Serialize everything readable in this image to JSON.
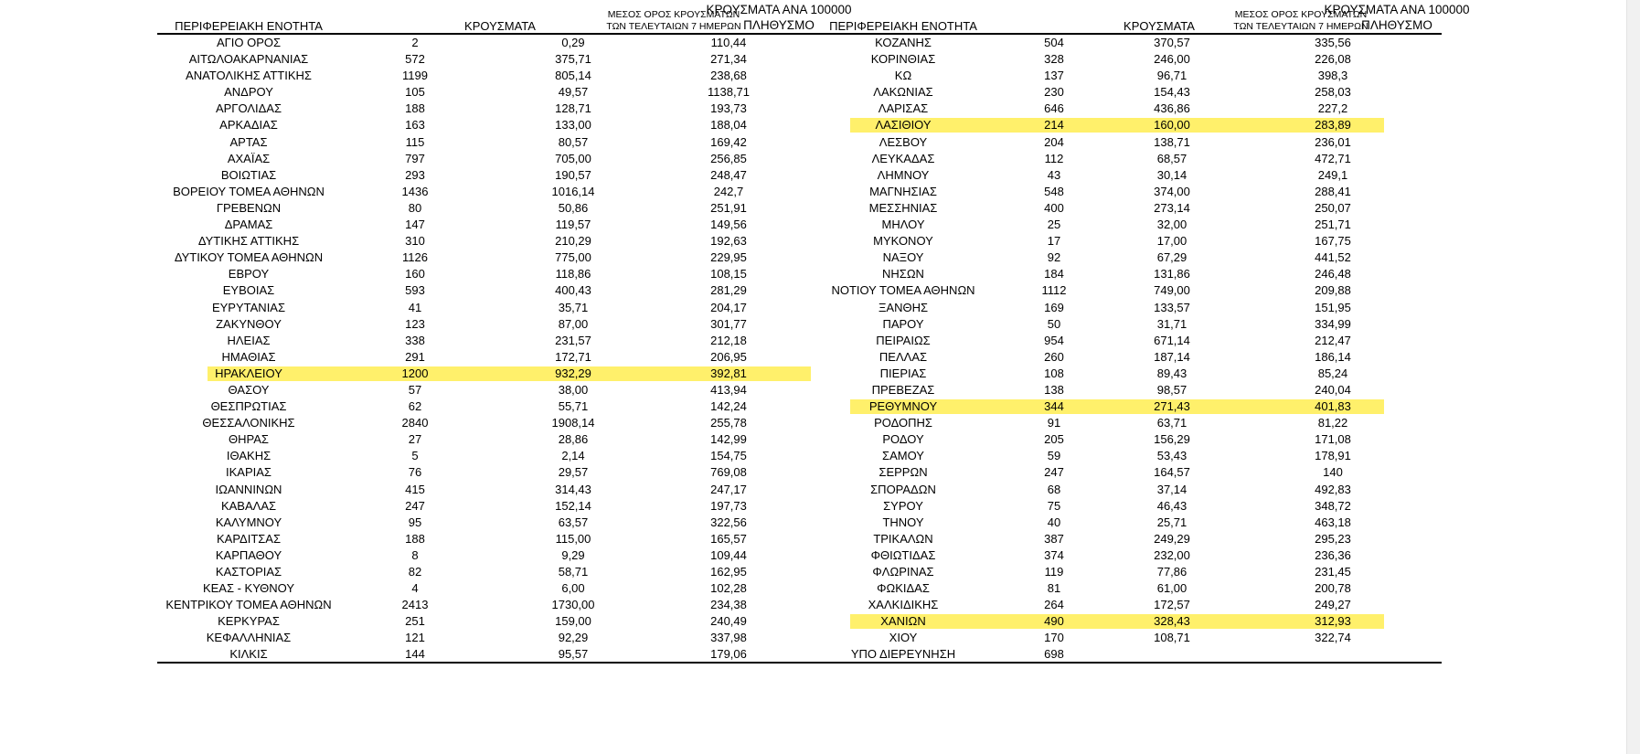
{
  "headers": {
    "region": "ΠΕΡΙΦΕΡΕΙΑΚΗ ΕΝΟΤΗΤΑ",
    "cases": "ΚΡΟΥΣΜΑΤΑ",
    "avg_line1": "ΜΕΣΟΣ ΟΡΟΣ ΚΡΟΥΣΜΑΤΩΝ",
    "avg_line2": "ΤΩΝ ΤΕΛΕΥΤΑΙΩΝ 7 ΗΜΕΡΩΝ",
    "per100k_line1": "ΚΡΟΥΣΜΑΤΑ ΑΝΑ 100000",
    "per100k_line2": "ΠΛΗΘΥΣΜΟ"
  },
  "highlight_color": "#fff06b",
  "left_rows": [
    {
      "region": "ΑΓΙΟ ΟΡΟΣ",
      "cases": "2",
      "avg": "0,29",
      "per100k": "110,44"
    },
    {
      "region": "ΑΙΤΩΛΟΑΚΑΡΝΑΝΙΑΣ",
      "cases": "572",
      "avg": "375,71",
      "per100k": "271,34"
    },
    {
      "region": "ΑΝΑΤΟΛΙΚΗΣ ΑΤΤΙΚΗΣ",
      "cases": "1199",
      "avg": "805,14",
      "per100k": "238,68"
    },
    {
      "region": "ΑΝΔΡΟΥ",
      "cases": "105",
      "avg": "49,57",
      "per100k": "1138,71"
    },
    {
      "region": "ΑΡΓΟΛΙΔΑΣ",
      "cases": "188",
      "avg": "128,71",
      "per100k": "193,73"
    },
    {
      "region": "ΑΡΚΑΔΙΑΣ",
      "cases": "163",
      "avg": "133,00",
      "per100k": "188,04"
    },
    {
      "region": "ΑΡΤΑΣ",
      "cases": "115",
      "avg": "80,57",
      "per100k": "169,42"
    },
    {
      "region": "ΑΧΑΪΑΣ",
      "cases": "797",
      "avg": "705,00",
      "per100k": "256,85"
    },
    {
      "region": "ΒΟΙΩΤΙΑΣ",
      "cases": "293",
      "avg": "190,57",
      "per100k": "248,47"
    },
    {
      "region": "ΒΟΡΕΙΟΥ ΤΟΜΕΑ ΑΘΗΝΩΝ",
      "cases": "1436",
      "avg": "1016,14",
      "per100k": "242,7"
    },
    {
      "region": "ΓΡΕΒΕΝΩΝ",
      "cases": "80",
      "avg": "50,86",
      "per100k": "251,91"
    },
    {
      "region": "ΔΡΑΜΑΣ",
      "cases": "147",
      "avg": "119,57",
      "per100k": "149,56"
    },
    {
      "region": "ΔΥΤΙΚΗΣ ΑΤΤΙΚΗΣ",
      "cases": "310",
      "avg": "210,29",
      "per100k": "192,63"
    },
    {
      "region": "ΔΥΤΙΚΟΥ ΤΟΜΕΑ ΑΘΗΝΩΝ",
      "cases": "1126",
      "avg": "775,00",
      "per100k": "229,95"
    },
    {
      "region": "ΕΒΡΟΥ",
      "cases": "160",
      "avg": "118,86",
      "per100k": "108,15"
    },
    {
      "region": "ΕΥΒΟΙΑΣ",
      "cases": "593",
      "avg": "400,43",
      "per100k": "281,29"
    },
    {
      "region": "ΕΥΡΥΤΑΝΙΑΣ",
      "cases": "41",
      "avg": "35,71",
      "per100k": "204,17"
    },
    {
      "region": "ΖΑΚΥΝΘΟΥ",
      "cases": "123",
      "avg": "87,00",
      "per100k": "301,77"
    },
    {
      "region": "ΗΛΕΙΑΣ",
      "cases": "338",
      "avg": "231,57",
      "per100k": "212,18"
    },
    {
      "region": "ΗΜΑΘΙΑΣ",
      "cases": "291",
      "avg": "172,71",
      "per100k": "206,95"
    },
    {
      "region": "ΗΡΑΚΛΕΙΟΥ",
      "cases": "1200",
      "avg": "932,29",
      "per100k": "392,81",
      "highlight": true
    },
    {
      "region": "ΘΑΣΟΥ",
      "cases": "57",
      "avg": "38,00",
      "per100k": "413,94"
    },
    {
      "region": "ΘΕΣΠΡΩΤΙΑΣ",
      "cases": "62",
      "avg": "55,71",
      "per100k": "142,24"
    },
    {
      "region": "ΘΕΣΣΑΛΟΝΙΚΗΣ",
      "cases": "2840",
      "avg": "1908,14",
      "per100k": "255,78"
    },
    {
      "region": "ΘΗΡΑΣ",
      "cases": "27",
      "avg": "28,86",
      "per100k": "142,99"
    },
    {
      "region": "ΙΘΑΚΗΣ",
      "cases": "5",
      "avg": "2,14",
      "per100k": "154,75"
    },
    {
      "region": "ΙΚΑΡΙΑΣ",
      "cases": "76",
      "avg": "29,57",
      "per100k": "769,08"
    },
    {
      "region": "ΙΩΑΝΝΙΝΩΝ",
      "cases": "415",
      "avg": "314,43",
      "per100k": "247,17"
    },
    {
      "region": "ΚΑΒΑΛΑΣ",
      "cases": "247",
      "avg": "152,14",
      "per100k": "197,73"
    },
    {
      "region": "ΚΑΛΥΜΝΟΥ",
      "cases": "95",
      "avg": "63,57",
      "per100k": "322,56"
    },
    {
      "region": "ΚΑΡΔΙΤΣΑΣ",
      "cases": "188",
      "avg": "115,00",
      "per100k": "165,57"
    },
    {
      "region": "ΚΑΡΠΑΘΟΥ",
      "cases": "8",
      "avg": "9,29",
      "per100k": "109,44"
    },
    {
      "region": "ΚΑΣΤΟΡΙΑΣ",
      "cases": "82",
      "avg": "58,71",
      "per100k": "162,95"
    },
    {
      "region": "ΚΕΑΣ - ΚΥΘΝΟΥ",
      "cases": "4",
      "avg": "6,00",
      "per100k": "102,28"
    },
    {
      "region": "ΚΕΝΤΡΙΚΟΥ ΤΟΜΕΑ ΑΘΗΝΩΝ",
      "cases": "2413",
      "avg": "1730,00",
      "per100k": "234,38"
    },
    {
      "region": "ΚΕΡΚΥΡΑΣ",
      "cases": "251",
      "avg": "159,00",
      "per100k": "240,49"
    },
    {
      "region": "ΚΕΦΑΛΛΗΝΙΑΣ",
      "cases": "121",
      "avg": "92,29",
      "per100k": "337,98"
    },
    {
      "region": "ΚΙΛΚΙΣ",
      "cases": "144",
      "avg": "95,57",
      "per100k": "179,06"
    }
  ],
  "right_rows": [
    {
      "region": "ΚΟΖΑΝΗΣ",
      "cases": "504",
      "avg": "370,57",
      "per100k": "335,56"
    },
    {
      "region": "ΚΟΡΙΝΘΙΑΣ",
      "cases": "328",
      "avg": "246,00",
      "per100k": "226,08"
    },
    {
      "region": "ΚΩ",
      "cases": "137",
      "avg": "96,71",
      "per100k": "398,3"
    },
    {
      "region": "ΛΑΚΩΝΙΑΣ",
      "cases": "230",
      "avg": "154,43",
      "per100k": "258,03"
    },
    {
      "region": "ΛΑΡΙΣΑΣ",
      "cases": "646",
      "avg": "436,86",
      "per100k": "227,2"
    },
    {
      "region": "ΛΑΣΙΘΙΟΥ",
      "cases": "214",
      "avg": "160,00",
      "per100k": "283,89",
      "highlight": true
    },
    {
      "region": "ΛΕΣΒΟΥ",
      "cases": "204",
      "avg": "138,71",
      "per100k": "236,01"
    },
    {
      "region": "ΛΕΥΚΑΔΑΣ",
      "cases": "112",
      "avg": "68,57",
      "per100k": "472,71"
    },
    {
      "region": "ΛΗΜΝΟΥ",
      "cases": "43",
      "avg": "30,14",
      "per100k": "249,1"
    },
    {
      "region": "ΜΑΓΝΗΣΙΑΣ",
      "cases": "548",
      "avg": "374,00",
      "per100k": "288,41"
    },
    {
      "region": "ΜΕΣΣΗΝΙΑΣ",
      "cases": "400",
      "avg": "273,14",
      "per100k": "250,07"
    },
    {
      "region": "ΜΗΛΟΥ",
      "cases": "25",
      "avg": "32,00",
      "per100k": "251,71"
    },
    {
      "region": "ΜΥΚΟΝΟΥ",
      "cases": "17",
      "avg": "17,00",
      "per100k": "167,75"
    },
    {
      "region": "ΝΑΞΟΥ",
      "cases": "92",
      "avg": "67,29",
      "per100k": "441,52"
    },
    {
      "region": "ΝΗΣΩΝ",
      "cases": "184",
      "avg": "131,86",
      "per100k": "246,48"
    },
    {
      "region": "ΝΟΤΙΟΥ ΤΟΜΕΑ ΑΘΗΝΩΝ",
      "cases": "1112",
      "avg": "749,00",
      "per100k": "209,88"
    },
    {
      "region": "ΞΑΝΘΗΣ",
      "cases": "169",
      "avg": "133,57",
      "per100k": "151,95"
    },
    {
      "region": "ΠΑΡΟΥ",
      "cases": "50",
      "avg": "31,71",
      "per100k": "334,99"
    },
    {
      "region": "ΠΕΙΡΑΙΩΣ",
      "cases": "954",
      "avg": "671,14",
      "per100k": "212,47"
    },
    {
      "region": "ΠΕΛΛΑΣ",
      "cases": "260",
      "avg": "187,14",
      "per100k": "186,14"
    },
    {
      "region": "ΠΙΕΡΙΑΣ",
      "cases": "108",
      "avg": "89,43",
      "per100k": "85,24"
    },
    {
      "region": "ΠΡΕΒΕΖΑΣ",
      "cases": "138",
      "avg": "98,57",
      "per100k": "240,04"
    },
    {
      "region": "ΡΕΘΥΜΝΟΥ",
      "cases": "344",
      "avg": "271,43",
      "per100k": "401,83",
      "highlight": true
    },
    {
      "region": "ΡΟΔΟΠΗΣ",
      "cases": "91",
      "avg": "63,71",
      "per100k": "81,22"
    },
    {
      "region": "ΡΟΔΟΥ",
      "cases": "205",
      "avg": "156,29",
      "per100k": "171,08"
    },
    {
      "region": "ΣΑΜΟΥ",
      "cases": "59",
      "avg": "53,43",
      "per100k": "178,91"
    },
    {
      "region": "ΣΕΡΡΩΝ",
      "cases": "247",
      "avg": "164,57",
      "per100k": "140"
    },
    {
      "region": "ΣΠΟΡΑΔΩΝ",
      "cases": "68",
      "avg": "37,14",
      "per100k": "492,83"
    },
    {
      "region": "ΣΥΡΟΥ",
      "cases": "75",
      "avg": "46,43",
      "per100k": "348,72"
    },
    {
      "region": "ΤΗΝΟΥ",
      "cases": "40",
      "avg": "25,71",
      "per100k": "463,18"
    },
    {
      "region": "ΤΡΙΚΑΛΩΝ",
      "cases": "387",
      "avg": "249,29",
      "per100k": "295,23"
    },
    {
      "region": "ΦΘΙΩΤΙΔΑΣ",
      "cases": "374",
      "avg": "232,00",
      "per100k": "236,36"
    },
    {
      "region": "ΦΛΩΡΙΝΑΣ",
      "cases": "119",
      "avg": "77,86",
      "per100k": "231,45"
    },
    {
      "region": "ΦΩΚΙΔΑΣ",
      "cases": "81",
      "avg": "61,00",
      "per100k": "200,78"
    },
    {
      "region": "ΧΑΛΚΙΔΙΚΗΣ",
      "cases": "264",
      "avg": "172,57",
      "per100k": "249,27"
    },
    {
      "region": "ΧΑΝΙΩΝ",
      "cases": "490",
      "avg": "328,43",
      "per100k": "312,93",
      "highlight": true
    },
    {
      "region": "ΧΙΟΥ",
      "cases": "170",
      "avg": "108,71",
      "per100k": "322,74"
    },
    {
      "region": "ΥΠΟ ΔΙΕΡΕΥΝΗΣΗ",
      "cases": "698",
      "avg": "",
      "per100k": ""
    }
  ]
}
